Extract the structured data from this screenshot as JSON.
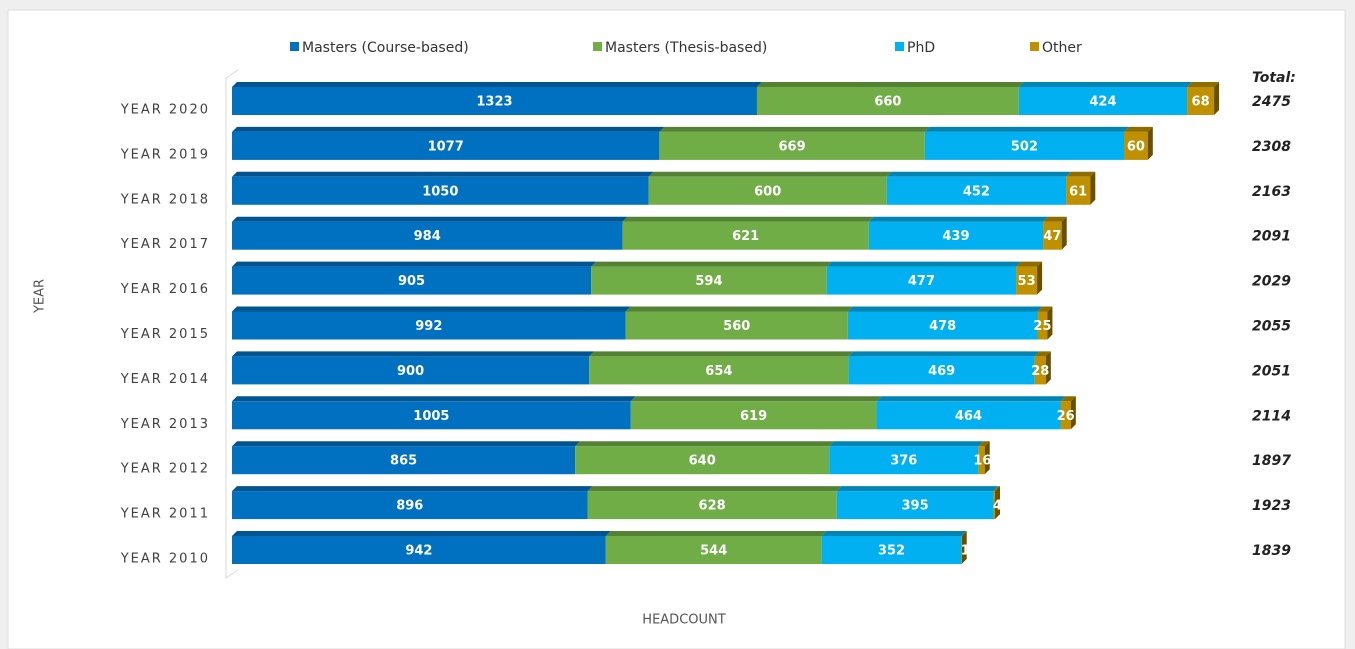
{
  "chart_data": {
    "type": "bar",
    "orientation": "horizontal",
    "stacked": true,
    "categories": [
      "YEAR 2020",
      "YEAR 2019",
      "YEAR 2018",
      "YEAR 2017",
      "YEAR 2016",
      "YEAR 2015",
      "YEAR 2014",
      "YEAR 2013",
      "YEAR 2012",
      "YEAR 2011",
      "YEAR 2010"
    ],
    "series": [
      {
        "name": "Masters (Course-based)",
        "color": "#0070c0",
        "values": [
          1323,
          1077,
          1050,
          984,
          905,
          992,
          900,
          1005,
          865,
          896,
          942
        ]
      },
      {
        "name": "Masters (Thesis-based)",
        "color": "#70ad47",
        "values": [
          660,
          669,
          600,
          621,
          594,
          560,
          654,
          619,
          640,
          628,
          544
        ]
      },
      {
        "name": "PhD",
        "color": "#00b0f0",
        "values": [
          424,
          502,
          452,
          439,
          477,
          478,
          469,
          464,
          376,
          395,
          352
        ]
      },
      {
        "name": "Other",
        "color": "#bf9000",
        "values": [
          68,
          60,
          61,
          47,
          53,
          25,
          28,
          26,
          16,
          4,
          1
        ]
      }
    ],
    "totals_label": "Total:",
    "totals": [
      2475,
      2308,
      2163,
      2091,
      2029,
      2055,
      2051,
      2114,
      1897,
      1923,
      1839
    ],
    "x_label": "HEADCOUNT",
    "y_label": "YEAR",
    "legend": "top"
  }
}
